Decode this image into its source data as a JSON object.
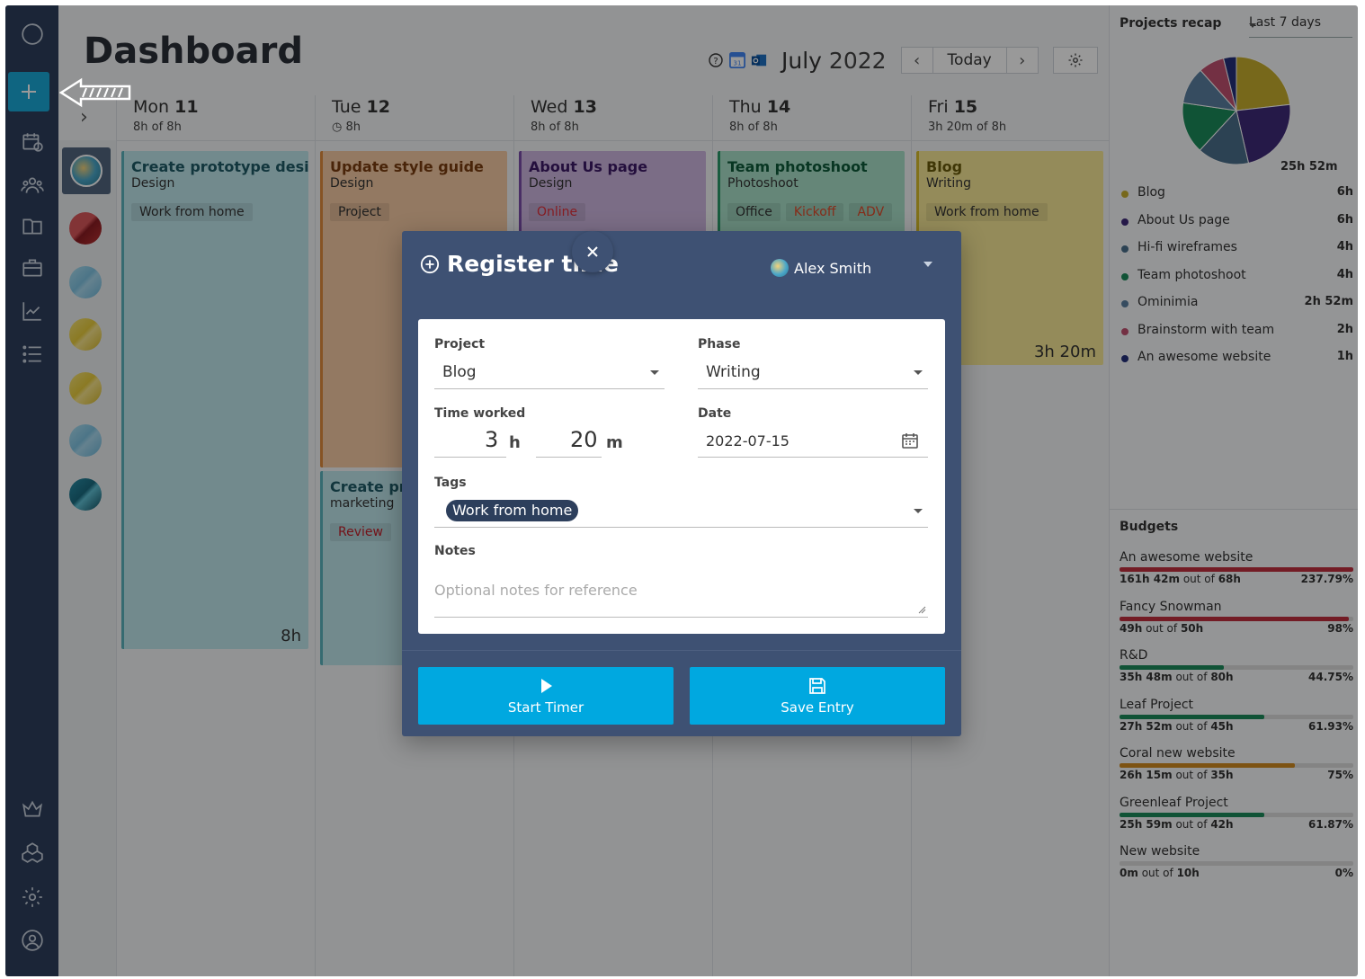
{
  "header": {
    "title": "Dashboard",
    "month": "July",
    "year": "2022",
    "today_label": "Today"
  },
  "days": [
    {
      "weekday": "Mon",
      "date": "11",
      "hours": "8h  of 8h"
    },
    {
      "weekday": "Tue",
      "date": "12",
      "hours": "8h"
    },
    {
      "weekday": "Wed",
      "date": "13",
      "hours": "8h  of 8h"
    },
    {
      "weekday": "Thu",
      "date": "14",
      "hours": "8h  of 8h"
    },
    {
      "weekday": "Fri",
      "date": "15",
      "hours": "3h 20m  of 8h"
    }
  ],
  "cards": [
    {
      "title": "Create prototype design",
      "sub": "Design",
      "tags": [
        "Work from home"
      ],
      "hours": "8h"
    },
    {
      "title": "Update style guide",
      "sub": "Design",
      "tags": [
        "Project"
      ]
    },
    {
      "title": "Create pro",
      "sub": "marketing",
      "tags": [
        "Review"
      ]
    },
    {
      "title": "About Us page",
      "sub": "Design",
      "tags": [
        "Online"
      ]
    },
    {
      "title": "Team photoshoot",
      "sub": "Photoshoot",
      "tags": [
        "Office",
        "Kickoff",
        "ADV"
      ]
    },
    {
      "title": "Blog",
      "sub": "Writing",
      "tags": [
        "Work from home"
      ],
      "hours": "3h 20m"
    }
  ],
  "recap": {
    "title": "Projects recap",
    "range": "Last 7 days",
    "total": "25h 52m",
    "items": [
      {
        "name": "Blog",
        "value": "6h",
        "color": "#c7ae2e",
        "hours": 6
      },
      {
        "name": "About Us page",
        "value": "6h",
        "color": "#3f2a78",
        "hours": 6
      },
      {
        "name": "Hi-fi wireframes",
        "value": "4h",
        "color": "#4a6f8a",
        "hours": 4
      },
      {
        "name": "Team photoshoot",
        "value": "4h",
        "color": "#1c8a5a",
        "hours": 4
      },
      {
        "name": "Ominimia",
        "value": "2h 52m",
        "color": "#5a7fa0",
        "hours": 2.87
      },
      {
        "name": "Brainstorm with team",
        "value": "2h",
        "color": "#c05070",
        "hours": 2
      },
      {
        "name": "An awesome website",
        "value": "1h",
        "color": "#23307a",
        "hours": 1
      }
    ]
  },
  "budgets": {
    "title": "Budgets",
    "items": [
      {
        "name": "An awesome website",
        "used": "161h 42m",
        "total": "68h",
        "pct": "237.79%",
        "fill": 1.0,
        "color": "#c0303f"
      },
      {
        "name": "Fancy Snowman",
        "used": "49h",
        "total": "50h",
        "pct": "98%",
        "fill": 0.98,
        "color": "#c0303f"
      },
      {
        "name": "R&D",
        "used": "35h 48m",
        "total": "80h",
        "pct": "44.75%",
        "fill": 0.4475,
        "color": "#1c8a5a"
      },
      {
        "name": "Leaf Project",
        "used": "27h 52m",
        "total": "45h",
        "pct": "61.93%",
        "fill": 0.6193,
        "color": "#1c8a5a"
      },
      {
        "name": "Coral new website",
        "used": "26h 15m",
        "total": "35h",
        "pct": "75%",
        "fill": 0.75,
        "color": "#d08a20"
      },
      {
        "name": "Greenleaf Project",
        "used": "25h 59m",
        "total": "42h",
        "pct": "61.87%",
        "fill": 0.6187,
        "color": "#1c8a5a"
      },
      {
        "name": "New website",
        "used": "0m",
        "total": "10h",
        "pct": "0%",
        "fill": 0,
        "color": "#1c8a5a"
      }
    ],
    "out_of": "out of"
  },
  "modal": {
    "title": "Register time",
    "user": "Alex Smith",
    "project_label": "Project",
    "project_value": "Blog",
    "phase_label": "Phase",
    "phase_value": "Writing",
    "time_label": "Time worked",
    "hours_value": "3",
    "hours_unit": "h",
    "minutes_value": "20",
    "minutes_unit": "m",
    "date_label": "Date",
    "date_value": "2022-07-15",
    "tags_label": "Tags",
    "tag_value": "Work from home",
    "notes_label": "Notes",
    "notes_placeholder": "Optional notes for reference",
    "start_label": "Start Timer",
    "save_label": "Save Entry"
  }
}
